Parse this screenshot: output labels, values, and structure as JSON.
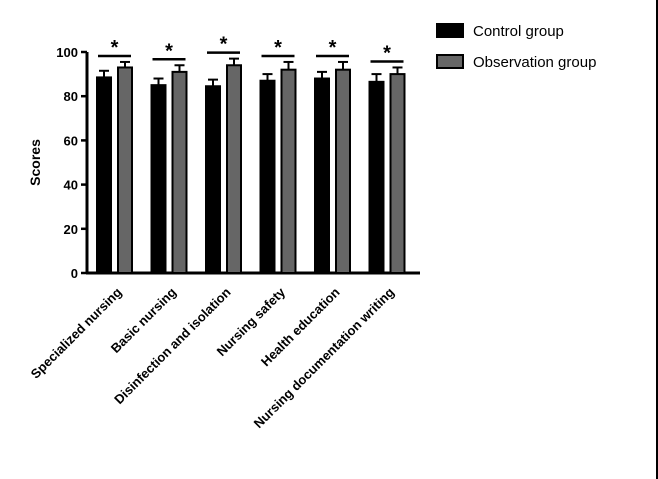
{
  "chart_data": {
    "type": "bar",
    "title": "",
    "xlabel": "",
    "ylabel": "Scores",
    "ylim": [
      0,
      100
    ],
    "yticks": [
      0,
      20,
      40,
      60,
      80,
      100
    ],
    "categories": [
      "Specialized nursing",
      "Basic nursing",
      "Disinfection and isolation",
      "Nursing safety",
      "Health education",
      "Nursing documentation writing"
    ],
    "series": [
      {
        "name": "Control group",
        "color": "#000000",
        "values": [
          88.5,
          85.0,
          84.5,
          87.0,
          88.0,
          86.5
        ],
        "errors": [
          3.0,
          3.0,
          3.0,
          3.0,
          3.0,
          3.5
        ]
      },
      {
        "name": "Observation group",
        "color": "#666666",
        "values": [
          93.0,
          91.0,
          94.0,
          92.0,
          92.0,
          90.0
        ],
        "errors": [
          2.5,
          3.0,
          3.0,
          3.5,
          3.5,
          3.0
        ]
      }
    ],
    "significance": [
      "*",
      "*",
      "*",
      "*",
      "*",
      "*"
    ],
    "legend_position": "top-right",
    "grid": false
  }
}
